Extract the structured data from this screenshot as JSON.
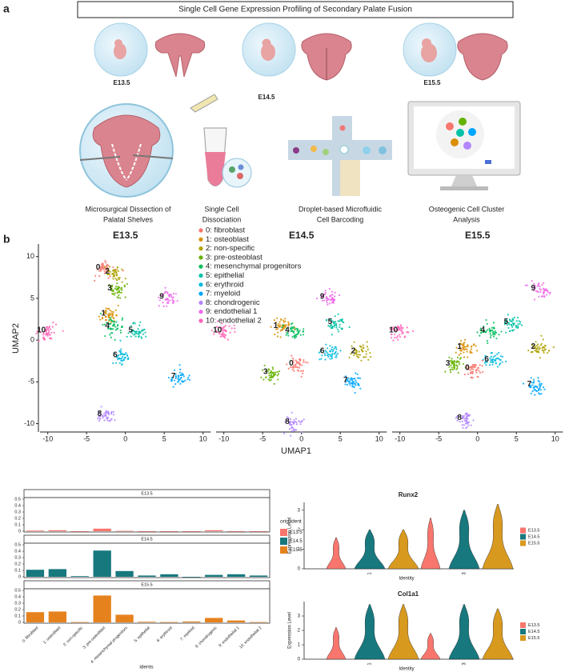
{
  "panel_a": {
    "label": "a",
    "title": "Single Cell Gene Expression Profiling of Secondary Palate Fusion",
    "stages": [
      "E13.5",
      "E14.5",
      "E15.5"
    ],
    "steps": [
      [
        "Microsurgical Dissection of",
        "Palatal Shelves"
      ],
      [
        "Single Cell",
        "Dissociation"
      ],
      [
        "Droplet-based Microfluidic",
        "Cell Barcoding"
      ],
      [
        "Osteogenic Cell Cluster",
        "Analysis"
      ]
    ]
  },
  "panel_b": {
    "label": "b",
    "umap": {
      "type": "scatter",
      "xlabel": "UMAP1",
      "ylabel": "UMAP2",
      "xlim": [
        -11,
        11
      ],
      "ylim": [
        -11,
        11.5
      ],
      "xticks": [
        -10,
        -5,
        0,
        5,
        10
      ],
      "yticks": [
        -10,
        -5,
        0,
        5,
        10
      ],
      "clusters": [
        {
          "name": "0: fibroblast",
          "color": "#f8766d"
        },
        {
          "name": "1: osteoblast",
          "color": "#db8e00"
        },
        {
          "name": "2: non-specific",
          "color": "#aea200"
        },
        {
          "name": "3: pre-osteoblast",
          "color": "#64b200"
        },
        {
          "name": "4: mesenchymal progenitors",
          "color": "#00bd5c"
        },
        {
          "name": "5: epithelial",
          "color": "#00c1a7"
        },
        {
          "name": "6: erythroid",
          "color": "#00bade"
        },
        {
          "name": "7: myeloid",
          "color": "#00a6ff"
        },
        {
          "name": "8: chondrogenic",
          "color": "#b385ff"
        },
        {
          "name": "9: endothelial 1",
          "color": "#ef67eb"
        },
        {
          "name": "10: endothelial 2",
          "color": "#ff63b6"
        }
      ],
      "panels": [
        {
          "title": "E13.5",
          "points": [
            {
              "cluster": 0,
              "x": -2.7,
              "y": 8.5
            },
            {
              "cluster": 2,
              "x": -1.5,
              "y": 8
            },
            {
              "cluster": 3,
              "x": -1.2,
              "y": 6
            },
            {
              "cluster": 1,
              "x": -2,
              "y": 3
            },
            {
              "cluster": 4,
              "x": -1.5,
              "y": 1.5
            },
            {
              "cluster": 5,
              "x": 1.5,
              "y": 1
            },
            {
              "cluster": 9,
              "x": 5.5,
              "y": 5
            },
            {
              "cluster": 10,
              "x": -10,
              "y": 1
            },
            {
              "cluster": 6,
              "x": -0.5,
              "y": -2
            },
            {
              "cluster": 7,
              "x": 7,
              "y": -4.5
            },
            {
              "cluster": 8,
              "x": -2.5,
              "y": -9
            }
          ]
        },
        {
          "title": "E14.5",
          "points": [
            {
              "cluster": 9,
              "x": 3.5,
              "y": 5
            },
            {
              "cluster": 10,
              "x": -10,
              "y": 1
            },
            {
              "cluster": 5,
              "x": 4.5,
              "y": 2
            },
            {
              "cluster": 1,
              "x": -2.5,
              "y": 1.5
            },
            {
              "cluster": 4,
              "x": -1,
              "y": 1
            },
            {
              "cluster": 6,
              "x": 3.5,
              "y": -1.5
            },
            {
              "cluster": 2,
              "x": 7.5,
              "y": -1.5
            },
            {
              "cluster": 3,
              "x": -3.8,
              "y": -4
            },
            {
              "cluster": 0,
              "x": -0.5,
              "y": -3
            },
            {
              "cluster": 7,
              "x": 6.5,
              "y": -5
            },
            {
              "cluster": 8,
              "x": -1,
              "y": -10
            }
          ]
        },
        {
          "title": "E15.5",
          "points": [
            {
              "cluster": 9,
              "x": 8,
              "y": 6
            },
            {
              "cluster": 10,
              "x": -10,
              "y": 1
            },
            {
              "cluster": 5,
              "x": 4.5,
              "y": 2
            },
            {
              "cluster": 4,
              "x": 1.5,
              "y": 1
            },
            {
              "cluster": 2,
              "x": 8,
              "y": -1
            },
            {
              "cluster": 1,
              "x": -1.5,
              "y": -1
            },
            {
              "cluster": 6,
              "x": 2,
              "y": -2.5
            },
            {
              "cluster": 3,
              "x": -3,
              "y": -3
            },
            {
              "cluster": 0,
              "x": -0.5,
              "y": -3.5
            },
            {
              "cluster": 7,
              "x": 7.5,
              "y": -5.5
            },
            {
              "cluster": 8,
              "x": -1.5,
              "y": -9.5
            }
          ]
        }
      ]
    },
    "proportions": {
      "type": "bar",
      "xlabel": "idents",
      "legend_title": "orig.ident",
      "categories": [
        "0: fibroblast",
        "1: osteoblast",
        "2: non-specific",
        "3: pre-osteoblast",
        "4: mesenchymal progenitors",
        "5: epithelial",
        "6: erythroid",
        "7: myeloid",
        "8: chondrogenic",
        "9: endothelial 1",
        "10: endothelial 2"
      ],
      "ylim": [
        0,
        0.5
      ],
      "yticks": [
        0,
        0.1,
        0.2,
        0.3,
        0.4,
        0.5
      ],
      "series": [
        {
          "name": "E13.5",
          "color": "#f8766d",
          "values": [
            0.01,
            0.015,
            0,
            0.04,
            0.005,
            0,
            0,
            0,
            0.015,
            0,
            0
          ]
        },
        {
          "name": "E14.5",
          "color": "#17787e",
          "values": [
            0.11,
            0.12,
            0.01,
            0.41,
            0.09,
            0.02,
            0.04,
            0,
            0.03,
            0.04,
            0.02
          ]
        },
        {
          "name": "E15.5",
          "color": "#e6821e",
          "values": [
            0.16,
            0.17,
            0.005,
            0.42,
            0.12,
            0.01,
            0.005,
            0.015,
            0.07,
            0.03,
            0.005
          ]
        }
      ]
    },
    "violins": {
      "type": "violin",
      "xlabel": "Identity",
      "ylabel": "Expression Level",
      "groups": [
        1,
        3
      ],
      "series": [
        {
          "name": "E13.5",
          "color": "#f8766d"
        },
        {
          "name": "E14.5",
          "color": "#17787e"
        },
        {
          "name": "E15.5",
          "color": "#d8991f"
        }
      ],
      "genes": [
        {
          "title": "Runx2",
          "ylim": [
            0,
            3.4
          ],
          "yticks": [
            0,
            1,
            2,
            3
          ],
          "values": [
            [
              1.6,
              2.6
            ],
            [
              2.0,
              3.0
            ],
            [
              2.0,
              3.3
            ]
          ]
        },
        {
          "title": "Col1a1",
          "ylim": [
            0,
            4
          ],
          "yticks": [
            0,
            1,
            2,
            3
          ],
          "values": [
            [
              2.2,
              1.8
            ],
            [
              3.8,
              3.8
            ],
            [
              3.8,
              3.5
            ]
          ]
        }
      ]
    }
  }
}
